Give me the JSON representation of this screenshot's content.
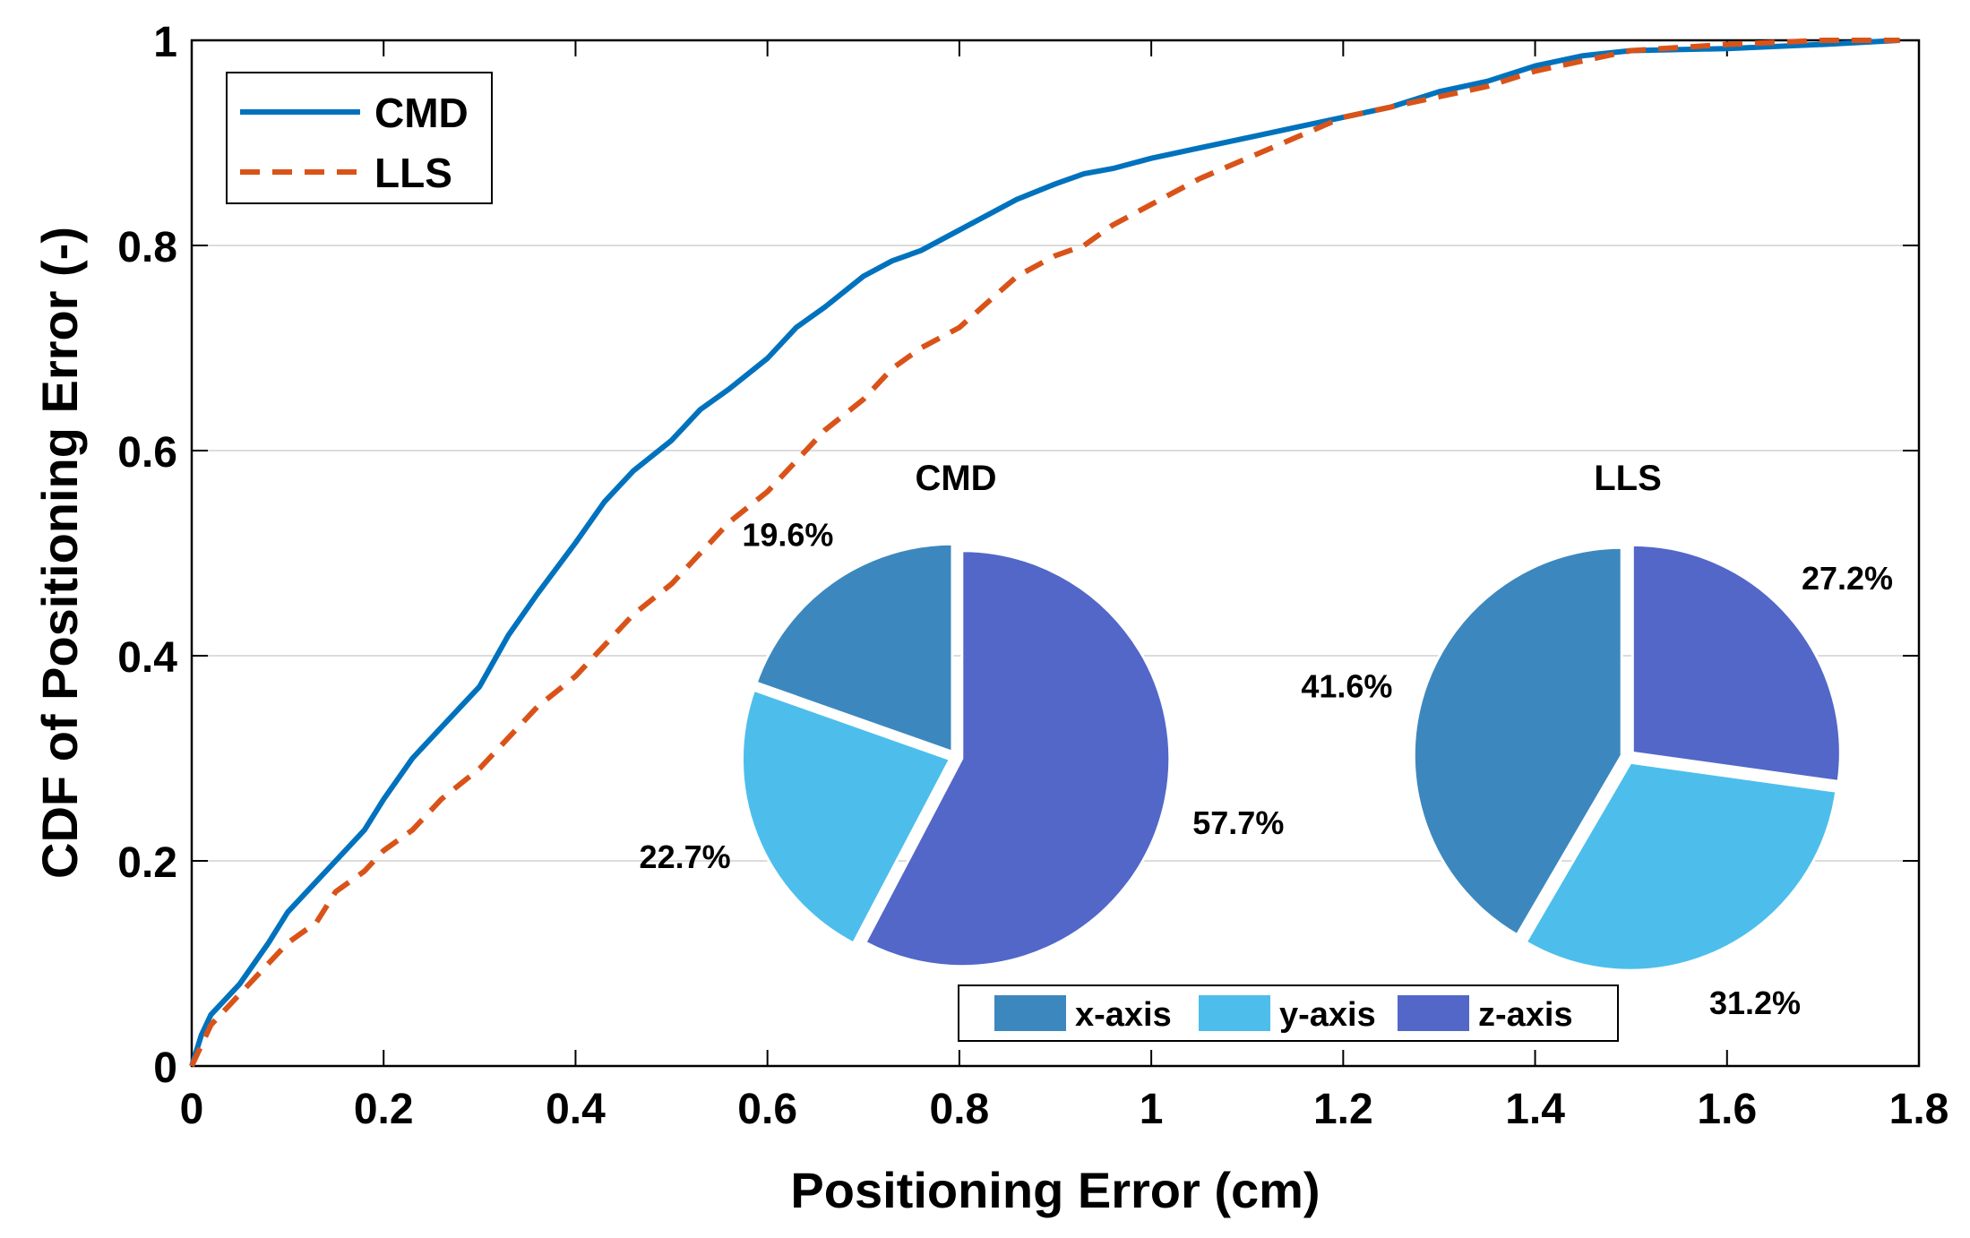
{
  "chart_data": [
    {
      "type": "line",
      "title": "",
      "xlabel": "Positioning Error (cm)",
      "ylabel": "CDF of Positioning Error (-)",
      "xlim": [
        0,
        1.8
      ],
      "ylim": [
        0,
        1
      ],
      "xticks": [
        0,
        0.2,
        0.4,
        0.6,
        0.8,
        1,
        1.2,
        1.4,
        1.6,
        1.8
      ],
      "xtick_labels": [
        "0",
        "0.2",
        "0.4",
        "0.6",
        "0.8",
        "1",
        "1.2",
        "1.4",
        "1.6",
        "1.8"
      ],
      "yticks": [
        0,
        0.2,
        0.4,
        0.6,
        0.8,
        1
      ],
      "ytick_labels": [
        "0",
        "0.2",
        "0.4",
        "0.6",
        "0.8",
        "1"
      ],
      "grid": "horizontal",
      "legend_position": "top-left",
      "series": [
        {
          "name": "CMD",
          "color": "#0072BD",
          "style": "solid",
          "x": [
            0,
            0.01,
            0.02,
            0.05,
            0.08,
            0.1,
            0.13,
            0.15,
            0.18,
            0.2,
            0.23,
            0.26,
            0.3,
            0.33,
            0.36,
            0.4,
            0.43,
            0.46,
            0.5,
            0.53,
            0.56,
            0.6,
            0.63,
            0.66,
            0.7,
            0.73,
            0.76,
            0.8,
            0.83,
            0.86,
            0.9,
            0.93,
            0.96,
            1.0,
            1.05,
            1.1,
            1.15,
            1.2,
            1.25,
            1.3,
            1.35,
            1.4,
            1.45,
            1.5,
            1.6,
            1.7,
            1.78
          ],
          "y": [
            0,
            0.03,
            0.05,
            0.08,
            0.12,
            0.15,
            0.18,
            0.2,
            0.23,
            0.26,
            0.3,
            0.33,
            0.37,
            0.42,
            0.46,
            0.51,
            0.55,
            0.58,
            0.61,
            0.64,
            0.66,
            0.69,
            0.72,
            0.74,
            0.77,
            0.785,
            0.795,
            0.815,
            0.83,
            0.845,
            0.86,
            0.87,
            0.875,
            0.885,
            0.895,
            0.905,
            0.915,
            0.925,
            0.935,
            0.95,
            0.96,
            0.975,
            0.985,
            0.99,
            0.992,
            0.996,
            1.0
          ]
        },
        {
          "name": "LLS",
          "color": "#D95319",
          "style": "dashed",
          "x": [
            0,
            0.02,
            0.05,
            0.08,
            0.1,
            0.13,
            0.15,
            0.18,
            0.2,
            0.23,
            0.26,
            0.3,
            0.33,
            0.36,
            0.4,
            0.43,
            0.46,
            0.5,
            0.53,
            0.56,
            0.6,
            0.63,
            0.66,
            0.7,
            0.73,
            0.76,
            0.8,
            0.83,
            0.86,
            0.9,
            0.93,
            0.96,
            1.0,
            1.05,
            1.1,
            1.15,
            1.2,
            1.25,
            1.3,
            1.35,
            1.4,
            1.45,
            1.5,
            1.6,
            1.7,
            1.78
          ],
          "y": [
            0,
            0.04,
            0.07,
            0.1,
            0.12,
            0.14,
            0.17,
            0.19,
            0.21,
            0.23,
            0.26,
            0.29,
            0.32,
            0.35,
            0.38,
            0.41,
            0.44,
            0.47,
            0.5,
            0.53,
            0.56,
            0.59,
            0.62,
            0.65,
            0.68,
            0.7,
            0.72,
            0.745,
            0.77,
            0.79,
            0.8,
            0.82,
            0.84,
            0.865,
            0.885,
            0.905,
            0.925,
            0.935,
            0.945,
            0.955,
            0.97,
            0.98,
            0.99,
            0.996,
            1.0,
            1.0
          ]
        }
      ]
    },
    {
      "type": "pie",
      "title": "CMD",
      "start_angle_deg": 0,
      "direction": "clockwise",
      "slices": [
        {
          "label": "z-axis",
          "value": 57.7,
          "text": "57.7%",
          "color": "#5267C8"
        },
        {
          "label": "y-axis",
          "value": 22.7,
          "text": "22.7%",
          "color": "#4DBEEB"
        },
        {
          "label": "x-axis",
          "value": 19.6,
          "text": "19.6%",
          "color": "#3C88BE"
        }
      ]
    },
    {
      "type": "pie",
      "title": "LLS",
      "start_angle_deg": 0,
      "direction": "clockwise",
      "slices": [
        {
          "label": "z-axis",
          "value": 27.2,
          "text": "27.2%",
          "color": "#5267C8"
        },
        {
          "label": "y-axis",
          "value": 31.2,
          "text": "31.2%",
          "color": "#4DBEEB"
        },
        {
          "label": "x-axis",
          "value": 41.6,
          "text": "41.6%",
          "color": "#3C88BE"
        }
      ]
    }
  ],
  "pie_legend": [
    {
      "label": "x-axis",
      "color": "#3C88BE"
    },
    {
      "label": "y-axis",
      "color": "#4DBEEB"
    },
    {
      "label": "z-axis",
      "color": "#5267C8"
    }
  ]
}
